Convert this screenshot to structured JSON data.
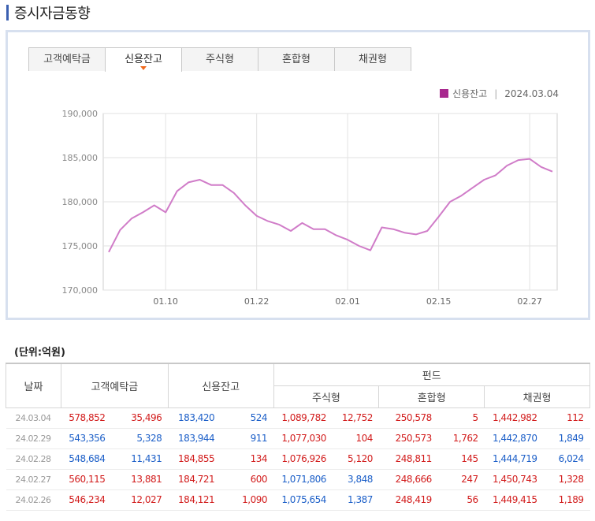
{
  "page": {
    "title": "증시자금동향"
  },
  "tabs": [
    {
      "label": "고객예탁금",
      "active": false
    },
    {
      "label": "신용잔고",
      "active": true
    },
    {
      "label": "주식형",
      "active": false
    },
    {
      "label": "혼합형",
      "active": false
    },
    {
      "label": "채권형",
      "active": false
    }
  ],
  "legend": {
    "series": "신용잔고",
    "separator": "|",
    "date": "2024.03.04",
    "color": "#a8288e"
  },
  "chart_data": {
    "type": "line",
    "ylim": [
      170000,
      190000
    ],
    "yticks": [
      "170,000",
      "175,000",
      "180,000",
      "185,000",
      "190,000"
    ],
    "ytick_values": [
      170000,
      175000,
      180000,
      185000,
      190000
    ],
    "xticks": [
      "01.10",
      "01.22",
      "02.01",
      "02.15",
      "02.27"
    ],
    "xtick_index": [
      5,
      13,
      21,
      29,
      37
    ],
    "grid": true,
    "series": [
      {
        "name": "신용잔고",
        "color": "#d07cc8",
        "values": [
          174300,
          176800,
          178100,
          178800,
          179600,
          178800,
          181200,
          182200,
          182500,
          181900,
          181900,
          181000,
          179600,
          178400,
          177800,
          177400,
          176700,
          177600,
          176900,
          176900,
          176200,
          175700,
          175000,
          174500,
          177100,
          176900,
          176500,
          176300,
          176700,
          178300,
          180000,
          180700,
          181600,
          182500,
          183000,
          184100,
          184721,
          184855,
          183944,
          183420
        ]
      }
    ]
  },
  "table": {
    "unit": "(단위:억원)",
    "headers": {
      "date": "날짜",
      "deposit": "고객예탁금",
      "credit": "신용잔고",
      "fund": "펀드",
      "stock": "주식형",
      "mixed": "혼합형",
      "bond": "채권형"
    },
    "rows": [
      {
        "date": "24.03.04",
        "c": [
          "578,852",
          "35,496",
          "183,420",
          "524",
          "1,089,782",
          "12,752",
          "250,578",
          "5",
          "1,442,982",
          "112"
        ],
        "col": [
          "red",
          "red",
          "blue",
          "blue",
          "red",
          "red",
          "red",
          "red",
          "red",
          "red"
        ]
      },
      {
        "date": "24.02.29",
        "c": [
          "543,356",
          "5,328",
          "183,944",
          "911",
          "1,077,030",
          "104",
          "250,573",
          "1,762",
          "1,442,870",
          "1,849"
        ],
        "col": [
          "blue",
          "blue",
          "blue",
          "blue",
          "red",
          "red",
          "red",
          "red",
          "blue",
          "blue"
        ]
      },
      {
        "date": "24.02.28",
        "c": [
          "548,684",
          "11,431",
          "184,855",
          "134",
          "1,076,926",
          "5,120",
          "248,811",
          "145",
          "1,444,719",
          "6,024"
        ],
        "col": [
          "blue",
          "blue",
          "red",
          "red",
          "red",
          "red",
          "red",
          "red",
          "blue",
          "blue"
        ]
      },
      {
        "date": "24.02.27",
        "c": [
          "560,115",
          "13,881",
          "184,721",
          "600",
          "1,071,806",
          "3,848",
          "248,666",
          "247",
          "1,450,743",
          "1,328"
        ],
        "col": [
          "red",
          "red",
          "red",
          "red",
          "blue",
          "blue",
          "red",
          "red",
          "red",
          "red"
        ]
      },
      {
        "date": "24.02.26",
        "c": [
          "546,234",
          "12,027",
          "184,121",
          "1,090",
          "1,075,654",
          "1,387",
          "248,419",
          "56",
          "1,449,415",
          "1,189"
        ],
        "col": [
          "red",
          "red",
          "red",
          "red",
          "blue",
          "blue",
          "red",
          "red",
          "red",
          "red"
        ]
      }
    ]
  }
}
